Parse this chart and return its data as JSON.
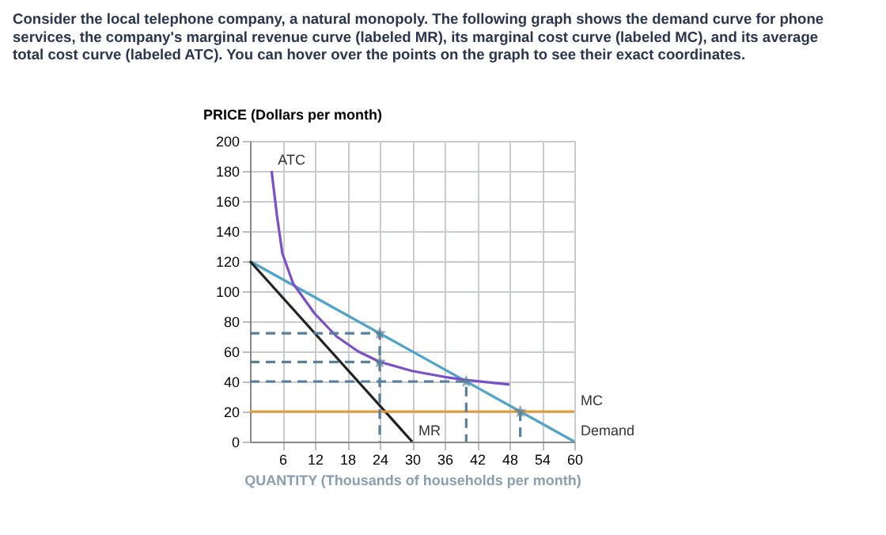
{
  "chart_data": {
    "type": "line",
    "title": [
      "Consider the local telephone company, a natural monopoly. The following graph shows the demand curve for phone",
      "services, the company's marginal revenue curve (labeled MR), its marginal cost curve (labeled MC), and its average",
      "total cost curve (labeled ATC). You can hover over the points on the graph to see their exact coordinates."
    ],
    "xlabel": "QUANTITY (Thousands of households per month)",
    "ylabel": "PRICE (Dollars per month)",
    "xlim": [
      0,
      60
    ],
    "ylim": [
      0,
      200
    ],
    "xticks": [
      6,
      12,
      18,
      24,
      30,
      36,
      42,
      48,
      54,
      60
    ],
    "yticks": [
      0,
      20,
      40,
      60,
      80,
      100,
      120,
      140,
      160,
      180,
      200
    ],
    "grid": true,
    "series": [
      {
        "name": "Demand",
        "color": "#4fa3c8",
        "x": [
          0,
          60
        ],
        "values": [
          120,
          0
        ]
      },
      {
        "name": "MR",
        "color": "#222222",
        "x": [
          0,
          30
        ],
        "values": [
          120,
          0
        ]
      },
      {
        "name": "MC",
        "color": "#e39a3b",
        "x": [
          0,
          60
        ],
        "values": [
          20,
          20
        ]
      },
      {
        "name": "ATC",
        "color": "#7a4fc8",
        "x": [
          48,
          40,
          36,
          30,
          24,
          20,
          16,
          12,
          10,
          8,
          6,
          5,
          4
        ],
        "values": [
          38,
          41,
          43,
          47,
          53,
          60,
          70,
          85,
          95,
          105,
          125,
          150,
          180
        ]
      },
      {
        "type": "line",
        "line_style": "dashed",
        "color": "#5a7f9a",
        "x": [
          0,
          24,
          24
        ],
        "values": [
          72,
          72,
          0
        ]
      },
      {
        "type": "line",
        "line_style": "dashed",
        "color": "#5a7f9a",
        "x": [
          0,
          24
        ],
        "values": [
          53,
          53
        ]
      },
      {
        "type": "line",
        "line_style": "dashed",
        "color": "#5a7f9a",
        "x": [
          0,
          40,
          40
        ],
        "values": [
          40,
          40,
          0
        ]
      },
      {
        "type": "line",
        "line_style": "dashed",
        "color": "#5a7f9a",
        "x": [
          50,
          50
        ],
        "values": [
          20,
          0
        ]
      },
      {
        "type": "scatter",
        "marker": "star",
        "color": "#5a7f9a",
        "x": [
          24,
          24,
          40,
          50
        ],
        "values": [
          72,
          53,
          40,
          20
        ]
      }
    ]
  }
}
